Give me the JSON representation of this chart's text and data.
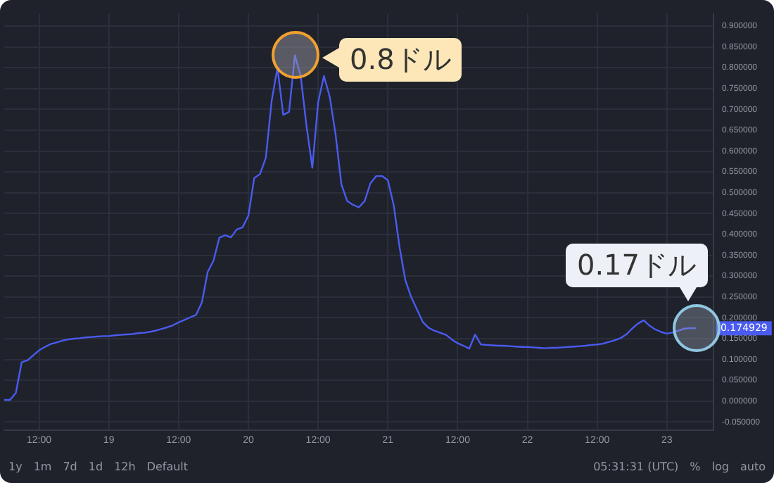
{
  "chart_data": {
    "type": "line",
    "color": "#4a5bf0",
    "grid": true,
    "legend": false,
    "marker": "none",
    "line_style": "solid",
    "categories": [
      null,
      null,
      null,
      null,
      null,
      null,
      "12:00",
      null,
      null,
      null,
      null,
      null,
      null,
      null,
      null,
      null,
      null,
      null,
      "19",
      null,
      null,
      null,
      null,
      null,
      null,
      null,
      null,
      null,
      null,
      null,
      "12:00",
      null,
      null,
      null,
      null,
      null,
      null,
      null,
      null,
      null,
      null,
      null,
      "20",
      null,
      null,
      null,
      null,
      null,
      null,
      null,
      null,
      null,
      null,
      null,
      "12:00",
      null,
      null,
      null,
      null,
      null,
      null,
      null,
      null,
      null,
      null,
      null,
      "21",
      null,
      null,
      null,
      null,
      null,
      null,
      null,
      null,
      null,
      null,
      null,
      "12:00",
      null,
      null,
      null,
      null,
      null,
      null,
      null,
      null,
      null,
      null,
      null,
      "22",
      null,
      null,
      null,
      null,
      null,
      null,
      null,
      null,
      null,
      null,
      null,
      "12:00",
      null,
      null,
      null,
      null,
      null,
      null,
      null,
      null,
      null,
      null,
      null,
      "23",
      null,
      null,
      null,
      null,
      null,
      null,
      null,
      null
    ],
    "values": [
      0.003,
      0.003,
      0.02,
      0.093,
      0.098,
      0.11,
      0.122,
      0.13,
      0.137,
      0.141,
      0.145,
      0.148,
      0.15,
      0.151,
      0.153,
      0.154,
      0.155,
      0.156,
      0.156,
      0.158,
      0.159,
      0.16,
      0.161,
      0.163,
      0.164,
      0.166,
      0.169,
      0.173,
      0.177,
      0.182,
      0.189,
      0.195,
      0.201,
      0.207,
      0.237,
      0.31,
      0.337,
      0.392,
      0.398,
      0.393,
      0.412,
      0.417,
      0.445,
      0.535,
      0.545,
      0.584,
      0.72,
      0.8,
      0.687,
      0.694,
      0.83,
      0.78,
      0.66,
      0.56,
      0.717,
      0.78,
      0.73,
      0.64,
      0.52,
      0.48,
      0.471,
      0.465,
      0.48,
      0.523,
      0.54,
      0.54,
      0.53,
      0.47,
      0.37,
      0.29,
      0.25,
      0.22,
      0.19,
      0.176,
      0.169,
      0.164,
      0.159,
      0.148,
      0.139,
      0.133,
      0.126,
      0.16,
      0.136,
      0.135,
      0.134,
      0.133,
      0.133,
      0.132,
      0.131,
      0.13,
      0.13,
      0.129,
      0.128,
      0.127,
      0.128,
      0.128,
      0.129,
      0.13,
      0.131,
      0.132,
      0.133,
      0.135,
      0.136,
      0.138,
      0.142,
      0.146,
      0.151,
      0.16,
      0.174,
      0.186,
      0.194,
      0.181,
      0.172,
      0.166,
      0.162,
      0.165,
      0.169,
      0.174,
      0.175,
      0.175,
      null,
      null,
      null
    ],
    "ylim": [
      -0.07,
      0.93
    ],
    "yticks": [
      {
        "value": -0.05,
        "label": "-0.050000"
      },
      {
        "value": 0,
        "label": "0.000000"
      },
      {
        "value": 0.05,
        "label": "0.050000"
      },
      {
        "value": 0.1,
        "label": "0.100000"
      },
      {
        "value": 0.15,
        "label": "0.150000"
      },
      {
        "value": 0.2,
        "label": "0.200000"
      },
      {
        "value": 0.25,
        "label": "0.250000"
      },
      {
        "value": 0.3,
        "label": "0.300000"
      },
      {
        "value": 0.35,
        "label": "0.350000"
      },
      {
        "value": 0.4,
        "label": "0.400000"
      },
      {
        "value": 0.45,
        "label": "0.450000"
      },
      {
        "value": 0.5,
        "label": "0.500000"
      },
      {
        "value": 0.55,
        "label": "0.550000"
      },
      {
        "value": 0.6,
        "label": "0.600000"
      },
      {
        "value": 0.65,
        "label": "0.650000"
      },
      {
        "value": 0.7,
        "label": "0.700000"
      },
      {
        "value": 0.75,
        "label": "0.750000"
      },
      {
        "value": 0.8,
        "label": "0.800000"
      },
      {
        "value": 0.85,
        "label": "0.850000"
      },
      {
        "value": 0.9,
        "label": "0.900000"
      }
    ],
    "annotations": [
      "0.8ドル",
      "0.17ドル",
      "0.174929",
      "1y",
      "1m",
      "7d",
      "1d",
      "12h",
      "Default",
      "05:31:31 (UTC)",
      "%",
      "log",
      "auto"
    ]
  }
}
